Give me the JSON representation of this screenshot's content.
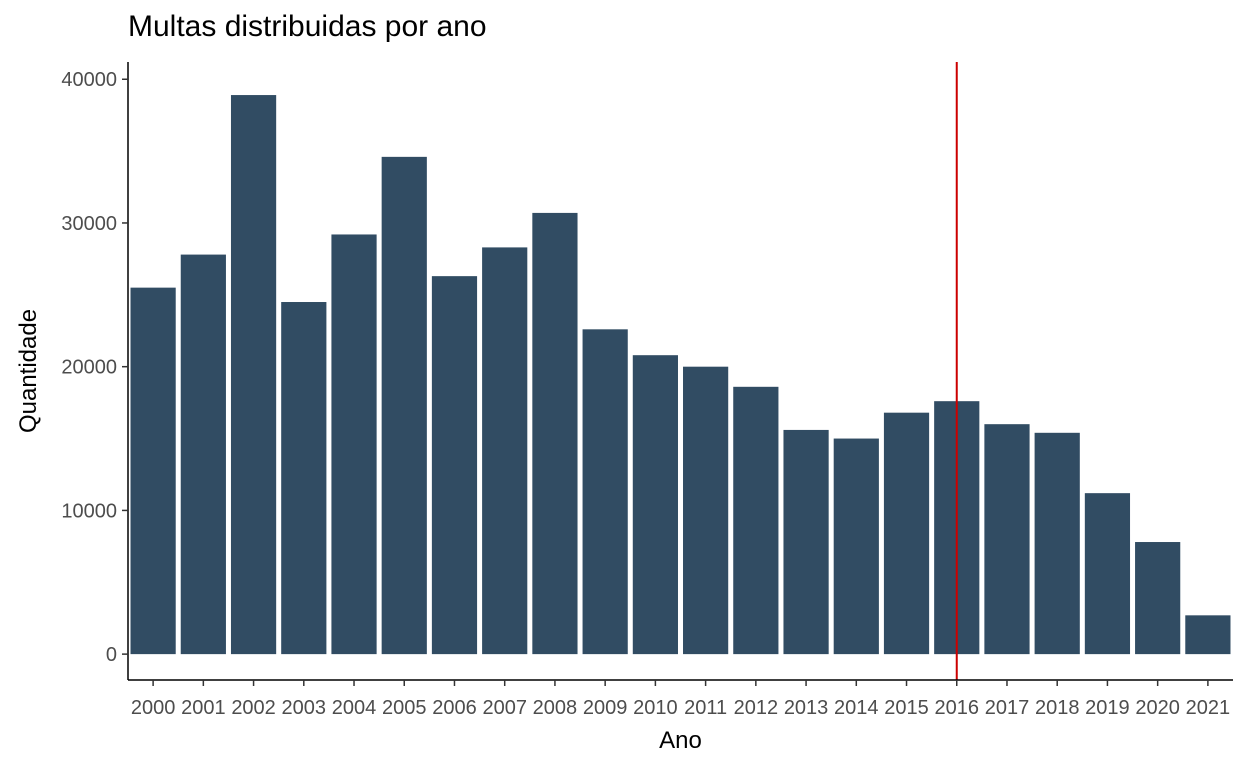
{
  "chart_data": {
    "type": "bar",
    "title": "Multas distribuidas por ano",
    "xlabel": "Ano",
    "ylabel": "Quantidade",
    "categories": [
      "2000",
      "2001",
      "2002",
      "2003",
      "2004",
      "2005",
      "2006",
      "2007",
      "2008",
      "2009",
      "2010",
      "2011",
      "2012",
      "2013",
      "2014",
      "2015",
      "2016",
      "2017",
      "2018",
      "2019",
      "2020",
      "2021"
    ],
    "values": [
      25500,
      27800,
      38900,
      24500,
      29200,
      34600,
      26300,
      28300,
      30700,
      22600,
      20800,
      20000,
      18600,
      15600,
      15000,
      16800,
      17600,
      16000,
      15400,
      11200,
      7800,
      2700
    ],
    "ylim": [
      -1800,
      41200
    ],
    "yticks": [
      0,
      10000,
      20000,
      30000,
      40000
    ],
    "bar_color": "#314c63",
    "reference_line": {
      "x": "2016",
      "color": "#cc0000"
    },
    "grid": false,
    "legend": "none"
  }
}
